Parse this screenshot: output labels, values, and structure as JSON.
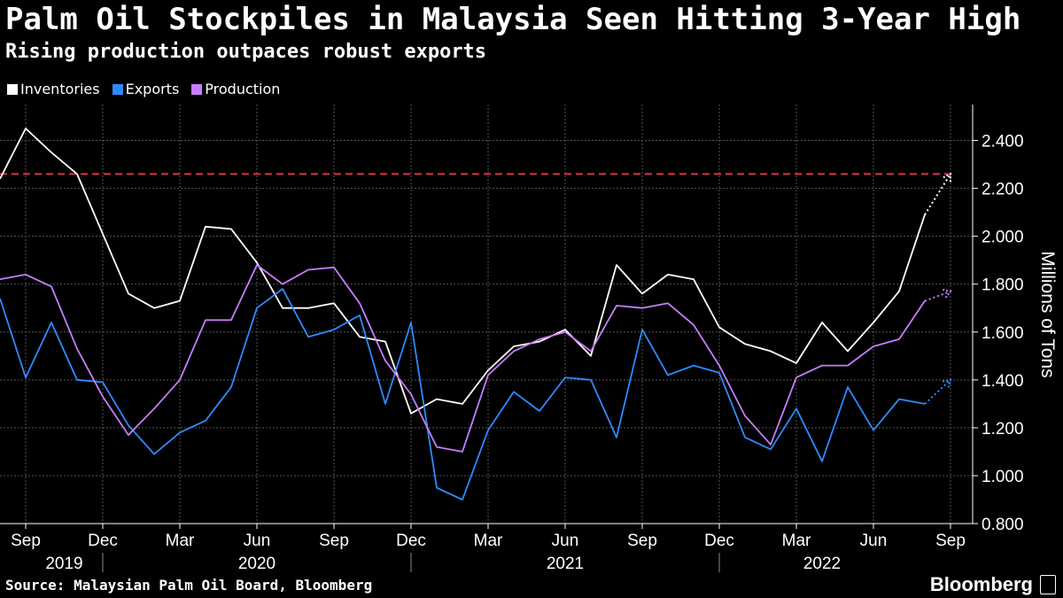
{
  "title": "Palm Oil Stockpiles in Malaysia Seen Hitting 3-Year High",
  "subtitle": "Rising production outpaces robust exports",
  "source": "Source: Malaysian Palm Oil Board, Bloomberg",
  "brand": "Bloomberg",
  "colors": {
    "inventories": "#ffffff",
    "exports": "#2e8bff",
    "production": "#c77dff",
    "threshold": "#e0304a",
    "grid": "#555555"
  },
  "chart_data": {
    "type": "line",
    "ylabel": "Millions of Tons",
    "ylim": [
      0.8,
      2.55
    ],
    "yticks": [
      "0.800",
      "1.000",
      "1.200",
      "1.400",
      "1.600",
      "1.800",
      "2.000",
      "2.200",
      "2.400"
    ],
    "y_axis_position": "right",
    "grid": true,
    "legend_placement": "top-left",
    "x_month_labels": [
      "Sep",
      "Dec",
      "Mar",
      "Jun",
      "Sep",
      "Dec",
      "Mar",
      "Jun",
      "Sep",
      "Dec",
      "Mar",
      "Jun",
      "Sep"
    ],
    "x_year_labels": [
      "2019",
      "2020",
      "2021",
      "2022"
    ],
    "months": [
      "2019-08",
      "2019-09",
      "2019-10",
      "2019-11",
      "2019-12",
      "2020-01",
      "2020-02",
      "2020-03",
      "2020-04",
      "2020-05",
      "2020-06",
      "2020-07",
      "2020-08",
      "2020-09",
      "2020-10",
      "2020-11",
      "2020-12",
      "2021-01",
      "2021-02",
      "2021-03",
      "2021-04",
      "2021-05",
      "2021-06",
      "2021-07",
      "2021-08",
      "2021-09",
      "2021-10",
      "2021-11",
      "2021-12",
      "2022-01",
      "2022-02",
      "2022-03",
      "2022-04",
      "2022-05",
      "2022-06",
      "2022-07",
      "2022-08"
    ],
    "series": [
      {
        "name": "Inventories",
        "key": "inventories",
        "values": [
          2.24,
          2.45,
          2.35,
          2.26,
          2.01,
          1.76,
          1.7,
          1.73,
          2.04,
          2.03,
          1.89,
          1.7,
          1.7,
          1.72,
          1.58,
          1.56,
          1.26,
          1.32,
          1.3,
          1.44,
          1.54,
          1.56,
          1.61,
          1.5,
          1.88,
          1.76,
          1.84,
          1.82,
          1.62,
          1.55,
          1.52,
          1.47,
          1.64,
          1.52,
          1.64,
          1.77,
          2.09
        ],
        "forecast": {
          "month": "2022-09",
          "value": 2.26
        }
      },
      {
        "name": "Exports",
        "key": "exports",
        "values": [
          1.74,
          1.41,
          1.64,
          1.4,
          1.39,
          1.21,
          1.09,
          1.18,
          1.23,
          1.37,
          1.7,
          1.78,
          1.58,
          1.61,
          1.67,
          1.3,
          1.64,
          0.95,
          0.9,
          1.19,
          1.35,
          1.27,
          1.41,
          1.4,
          1.16,
          1.61,
          1.42,
          1.46,
          1.43,
          1.16,
          1.11,
          1.28,
          1.06,
          1.37,
          1.19,
          1.32,
          1.3
        ],
        "forecast": {
          "month": "2022-09",
          "value": 1.4
        }
      },
      {
        "name": "Production",
        "key": "production",
        "values": [
          1.82,
          1.84,
          1.79,
          1.53,
          1.33,
          1.17,
          1.28,
          1.4,
          1.65,
          1.65,
          1.88,
          1.8,
          1.86,
          1.87,
          1.72,
          1.48,
          1.34,
          1.12,
          1.1,
          1.42,
          1.52,
          1.57,
          1.6,
          1.52,
          1.71,
          1.7,
          1.72,
          1.63,
          1.46,
          1.25,
          1.13,
          1.41,
          1.46,
          1.46,
          1.54,
          1.57,
          1.73
        ],
        "forecast": {
          "month": "2022-09",
          "value": 1.77
        }
      }
    ],
    "reference_line": {
      "value": 2.26,
      "style": "dashed"
    }
  }
}
